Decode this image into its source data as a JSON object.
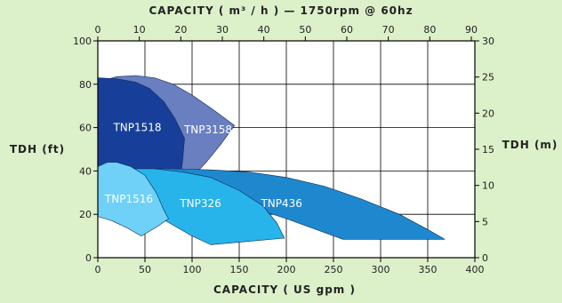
{
  "chart_data": {
    "type": "area",
    "title": "",
    "top_axis_label": "CAPACITY ( m³ / h ) — 1750rpm @ 60hz",
    "xlabel": "CAPACITY ( US gpm )",
    "ylabel_left": "TDH (ft)",
    "ylabel_right": "TDH (m)",
    "xlim": [
      0,
      400
    ],
    "ylim": [
      0,
      100
    ],
    "top_xlim": [
      0,
      90
    ],
    "right_ylim": [
      0,
      30
    ],
    "x_ticks": [
      "0",
      "50",
      "100",
      "150",
      "200",
      "250",
      "300",
      "350",
      "400"
    ],
    "y_ticks": [
      "0",
      "20",
      "40",
      "60",
      "80",
      "100"
    ],
    "top_ticks": [
      "0",
      "10",
      "20",
      "30",
      "40",
      "50",
      "60",
      "70",
      "80",
      "90"
    ],
    "right_ticks": [
      "0",
      "5",
      "10",
      "15",
      "20",
      "25",
      "30"
    ],
    "grid": true,
    "colors": {
      "background": "#dcf0c9",
      "plot_background": "#ffffff",
      "TNP3158": "#6a7fc0",
      "TNP1518": "#173f99",
      "TNP436": "#1e88cf",
      "TNP326": "#27b4ea",
      "TNP1516": "#6fd0f8"
    },
    "series": [
      {
        "name": "TNP3158",
        "label_at": [
          117,
          59
        ],
        "outline": [
          [
            0,
            81
          ],
          [
            20,
            83.5
          ],
          [
            40,
            84
          ],
          [
            60,
            83
          ],
          [
            80,
            80
          ],
          [
            100,
            75
          ],
          [
            120,
            69
          ],
          [
            145,
            61
          ],
          [
            130,
            52
          ],
          [
            115,
            44
          ],
          [
            100,
            37
          ],
          [
            88,
            36
          ],
          [
            80,
            45
          ],
          [
            60,
            60
          ],
          [
            30,
            70
          ],
          [
            0,
            74
          ]
        ]
      },
      {
        "name": "TNP1518",
        "label_at": [
          42,
          60
        ],
        "outline": [
          [
            0,
            83
          ],
          [
            20,
            82.5
          ],
          [
            40,
            81
          ],
          [
            55,
            78
          ],
          [
            70,
            72
          ],
          [
            82,
            64
          ],
          [
            92,
            55
          ],
          [
            90,
            45
          ],
          [
            88,
            38
          ],
          [
            80,
            35
          ],
          [
            40,
            36
          ],
          [
            15,
            38
          ],
          [
            0,
            38
          ]
        ]
      },
      {
        "name": "TNP436",
        "label_at": [
          195,
          25
        ],
        "outline": [
          [
            40,
            41
          ],
          [
            80,
            41
          ],
          [
            120,
            40.5
          ],
          [
            160,
            39.5
          ],
          [
            200,
            37
          ],
          [
            240,
            33
          ],
          [
            280,
            27
          ],
          [
            320,
            20
          ],
          [
            350,
            13
          ],
          [
            368,
            8.5
          ],
          [
            260,
            8.5
          ],
          [
            200,
            18
          ],
          [
            150,
            25
          ],
          [
            120,
            28
          ],
          [
            100,
            30
          ],
          [
            80,
            34
          ],
          [
            50,
            38
          ]
        ]
      },
      {
        "name": "TNP326",
        "label_at": [
          109,
          25
        ],
        "outline": [
          [
            30,
            41
          ],
          [
            60,
            41
          ],
          [
            90,
            39.5
          ],
          [
            120,
            37
          ],
          [
            150,
            31
          ],
          [
            175,
            24
          ],
          [
            190,
            16
          ],
          [
            198,
            9
          ],
          [
            120,
            6
          ],
          [
            100,
            10
          ],
          [
            80,
            15
          ],
          [
            60,
            20
          ],
          [
            40,
            28
          ],
          [
            25,
            35
          ]
        ]
      },
      {
        "name": "TNP1516",
        "label_at": [
          33,
          27
        ],
        "outline": [
          [
            0,
            42
          ],
          [
            10,
            44
          ],
          [
            20,
            44
          ],
          [
            35,
            42
          ],
          [
            50,
            38
          ],
          [
            62,
            30
          ],
          [
            70,
            22
          ],
          [
            75,
            18
          ],
          [
            62,
            14
          ],
          [
            46,
            10
          ],
          [
            30,
            14
          ],
          [
            15,
            17
          ],
          [
            0,
            19
          ]
        ]
      }
    ]
  }
}
